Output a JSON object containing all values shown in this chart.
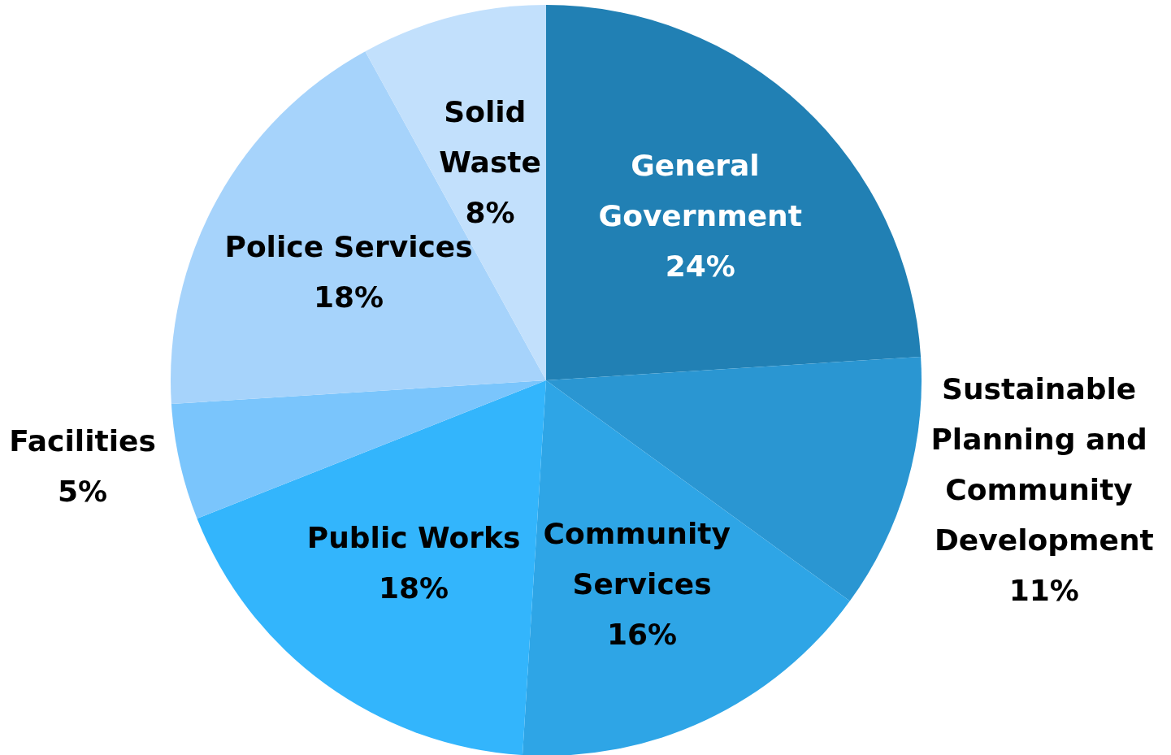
{
  "chart_data": {
    "type": "pie",
    "categories": [
      "General Government",
      "Sustainable Planning and Community Development",
      "Community Services",
      "Public Works",
      "Facilities",
      "Police Services",
      "Solid Waste"
    ],
    "values": [
      24,
      11,
      16,
      18,
      5,
      18,
      8
    ],
    "value_labels": [
      "24%",
      "11%",
      "16%",
      "18%",
      "5%",
      "18%",
      "8%"
    ],
    "colors": [
      "#2180b4",
      "#2a96d2",
      "#2ea5e6",
      "#33b5fc",
      "#7ac5fc",
      "#a6d3fb",
      "#c2e0fc"
    ],
    "legend": false
  }
}
